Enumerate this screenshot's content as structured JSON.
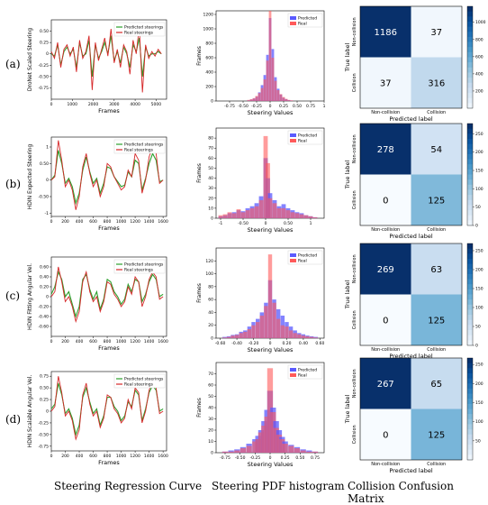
{
  "figure": {
    "row_labels": [
      "(a)",
      "(b)",
      "(c)",
      "(d)"
    ],
    "column_captions": [
      "Steering Regression Curve",
      "Steering PDF histogram",
      "Collision Confusion Matrix"
    ]
  },
  "colors": {
    "predicted_curve": "#2ca02c",
    "real_curve": "#d62728",
    "predicted_hist": "#5a5aff",
    "real_hist": "#ff5a5a",
    "cm_low": "#f7fbff",
    "cm_high": "#08306b"
  },
  "chart_data": [
    {
      "type": "line",
      "row": "(a)",
      "ylabel": "DroNet Scaled Steering",
      "xlabel": "Frames",
      "xlim": [
        0,
        5500
      ],
      "ylim": [
        -1.0,
        0.75
      ],
      "xticks": [
        0,
        1000,
        2000,
        3000,
        4000,
        5000
      ],
      "yticks": [
        -0.75,
        -0.5,
        -0.25,
        0.0,
        0.25,
        0.5
      ],
      "legend": "top-right",
      "series": [
        {
          "name": "Predicted steerings",
          "color": "#2ca02c"
        },
        {
          "name": "Real steerings",
          "color": "#d62728"
        }
      ],
      "x": [
        0,
        150,
        300,
        450,
        600,
        750,
        900,
        1050,
        1200,
        1350,
        1500,
        1650,
        1800,
        1950,
        2100,
        2250,
        2400,
        2550,
        2700,
        2850,
        3000,
        3150,
        3300,
        3450,
        3600,
        3750,
        3900,
        4050,
        4200,
        4350,
        4500,
        4650,
        4800,
        4950,
        5100,
        5250
      ],
      "values_real": [
        0.05,
        -0.1,
        0.25,
        -0.3,
        0.1,
        0.2,
        -0.05,
        0.15,
        -0.4,
        0.3,
        -0.1,
        0.05,
        0.4,
        -0.8,
        0.25,
        -0.15,
        0.1,
        0.35,
        -0.05,
        0.55,
        -0.2,
        0.1,
        -0.3,
        0.2,
        0.05,
        -0.45,
        0.3,
        0.0,
        0.6,
        -0.85,
        0.2,
        -0.1,
        0.05,
        -0.05,
        0.1,
        0.0
      ],
      "values_predicted": [
        0.0,
        -0.05,
        0.2,
        -0.25,
        0.05,
        0.15,
        0.0,
        0.1,
        -0.3,
        0.25,
        -0.05,
        0.0,
        0.3,
        -0.5,
        0.2,
        -0.1,
        0.05,
        0.25,
        0.0,
        0.4,
        -0.15,
        0.05,
        -0.2,
        0.15,
        0.0,
        -0.3,
        0.2,
        0.05,
        0.35,
        -0.5,
        0.15,
        -0.05,
        0.0,
        0.0,
        0.05,
        0.0
      ]
    },
    {
      "type": "bar",
      "row": "(a)",
      "ylabel": "Frames",
      "xlabel": "Steering Values",
      "xlim": [
        -1.0,
        1.0
      ],
      "ylim": [
        0,
        1250
      ],
      "xticks": [
        -0.75,
        -0.5,
        -0.25,
        0.0,
        0.25,
        0.5,
        0.75,
        1.0
      ],
      "yticks": [
        0,
        200,
        400,
        600,
        800,
        1000,
        1200
      ],
      "legend": "top-right",
      "series": [
        {
          "name": "Predicted",
          "color": "#5a5aff"
        },
        {
          "name": "Real",
          "color": "#ff5a5a"
        }
      ],
      "bins": [
        -0.4,
        -0.35,
        -0.3,
        -0.25,
        -0.2,
        -0.15,
        -0.1,
        -0.05,
        0.0,
        0.05,
        0.1,
        0.15,
        0.2,
        0.25,
        0.3,
        0.35,
        0.4
      ],
      "predicted": [
        10,
        20,
        35,
        60,
        120,
        220,
        360,
        640,
        1150,
        720,
        330,
        170,
        90,
        45,
        25,
        12,
        6
      ],
      "real": [
        15,
        25,
        40,
        70,
        110,
        180,
        300,
        560,
        1250,
        600,
        280,
        150,
        95,
        55,
        30,
        15,
        10
      ]
    },
    {
      "type": "heatmap",
      "row": "(a)",
      "ylabel": "True label",
      "xlabel": "Predicted label",
      "categories": [
        "Non-collision",
        "Collision"
      ],
      "matrix": [
        [
          1186,
          37
        ],
        [
          37,
          316
        ]
      ],
      "colorbar_ticks": [
        200,
        400,
        600,
        800,
        1000
      ],
      "vmax": 1186
    },
    {
      "type": "line",
      "row": "(b)",
      "ylabel": "HDIN Expected Steering",
      "xlabel": "Frames",
      "xlim": [
        0,
        1650
      ],
      "ylim": [
        -1.1,
        1.3
      ],
      "xticks": [
        0,
        200,
        400,
        600,
        800,
        1000,
        1200,
        1400,
        1600
      ],
      "yticks": [
        -1.0,
        -0.5,
        0.0,
        0.5,
        1.0
      ],
      "legend": "top-right",
      "series": [
        {
          "name": "Predicted steerings",
          "color": "#2ca02c"
        },
        {
          "name": "Real steerings",
          "color": "#d62728"
        }
      ],
      "x": [
        0,
        50,
        100,
        150,
        200,
        250,
        300,
        350,
        400,
        450,
        500,
        550,
        600,
        650,
        700,
        750,
        800,
        850,
        900,
        950,
        1000,
        1050,
        1100,
        1150,
        1200,
        1250,
        1300,
        1350,
        1400,
        1450,
        1500,
        1550,
        1600
      ],
      "values_real": [
        0.0,
        0.1,
        1.2,
        0.6,
        -0.2,
        0.0,
        -0.3,
        -0.9,
        -0.5,
        0.4,
        0.8,
        0.2,
        -0.2,
        0.0,
        -0.5,
        -0.2,
        0.5,
        0.4,
        0.1,
        -0.1,
        -0.3,
        -0.2,
        0.3,
        0.1,
        0.8,
        0.6,
        -0.4,
        0.0,
        0.7,
        1.0,
        0.8,
        -0.1,
        0.0
      ],
      "values_predicted": [
        0.0,
        0.15,
        0.9,
        0.5,
        -0.1,
        0.05,
        -0.2,
        -0.7,
        -0.4,
        0.3,
        0.7,
        0.25,
        -0.1,
        0.05,
        -0.4,
        -0.1,
        0.4,
        0.35,
        0.1,
        -0.05,
        -0.2,
        -0.15,
        0.25,
        0.1,
        0.6,
        0.5,
        -0.3,
        0.05,
        0.5,
        0.8,
        0.6,
        -0.05,
        0.0
      ]
    },
    {
      "type": "bar",
      "row": "(b)",
      "ylabel": "Frames",
      "xlabel": "Steering Values",
      "xlim": [
        -1.1,
        1.3
      ],
      "ylim": [
        0,
        90
      ],
      "xticks": [
        -1.0,
        -0.5,
        0.0,
        0.5,
        1.0
      ],
      "yticks": [
        0,
        10,
        20,
        30,
        40,
        50,
        60,
        70,
        80
      ],
      "legend": "top-right",
      "series": [
        {
          "name": "Predicted",
          "color": "#5a5aff"
        },
        {
          "name": "Real",
          "color": "#ff5a5a"
        }
      ],
      "bins": [
        -1.0,
        -0.9,
        -0.8,
        -0.7,
        -0.6,
        -0.5,
        -0.4,
        -0.3,
        -0.2,
        -0.1,
        0.0,
        0.05,
        0.1,
        0.2,
        0.3,
        0.4,
        0.5,
        0.6,
        0.7,
        0.8,
        0.9,
        1.0,
        1.1
      ],
      "predicted": [
        2,
        3,
        5,
        6,
        8,
        7,
        10,
        12,
        15,
        22,
        60,
        40,
        25,
        18,
        12,
        14,
        10,
        8,
        6,
        5,
        3,
        2,
        1
      ],
      "real": [
        3,
        4,
        6,
        5,
        9,
        6,
        8,
        10,
        12,
        18,
        82,
        55,
        20,
        15,
        10,
        10,
        8,
        6,
        5,
        4,
        3,
        2,
        1
      ]
    },
    {
      "type": "heatmap",
      "row": "(b)",
      "ylabel": "True label",
      "xlabel": "Predicted label",
      "categories": [
        "Non-collision",
        "Collision"
      ],
      "matrix": [
        [
          278,
          54
        ],
        [
          0,
          125
        ]
      ],
      "colorbar_ticks": [
        0,
        50,
        100,
        150,
        200,
        250
      ],
      "vmax": 278
    },
    {
      "type": "line",
      "row": "(c)",
      "ylabel": "HDIN Fitting Angular Vel.",
      "xlabel": "Frames",
      "xlim": [
        0,
        1650
      ],
      "ylim": [
        -0.8,
        0.8
      ],
      "xticks": [
        0,
        200,
        400,
        600,
        800,
        1000,
        1200,
        1400,
        1600
      ],
      "yticks": [
        -0.6,
        -0.4,
        -0.2,
        0.0,
        0.2,
        0.4,
        0.6
      ],
      "legend": "top-right",
      "series": [
        {
          "name": "Predicted steerings",
          "color": "#2ca02c"
        },
        {
          "name": "Real steerings",
          "color": "#d62728"
        }
      ],
      "x": [
        0,
        50,
        100,
        150,
        200,
        250,
        300,
        350,
        400,
        450,
        500,
        550,
        600,
        650,
        700,
        750,
        800,
        850,
        900,
        950,
        1000,
        1050,
        1100,
        1150,
        1200,
        1250,
        1300,
        1350,
        1400,
        1450,
        1500,
        1550,
        1600
      ],
      "values_real": [
        0.0,
        0.1,
        0.6,
        0.3,
        -0.1,
        0.0,
        -0.2,
        -0.5,
        -0.3,
        0.3,
        0.5,
        0.1,
        -0.1,
        0.0,
        -0.3,
        -0.1,
        0.3,
        0.25,
        0.05,
        -0.05,
        -0.2,
        -0.1,
        0.2,
        0.05,
        0.4,
        0.3,
        -0.2,
        0.0,
        0.35,
        0.5,
        0.4,
        -0.05,
        0.0
      ],
      "values_predicted": [
        0.05,
        0.2,
        0.5,
        0.35,
        0.0,
        0.1,
        -0.15,
        -0.4,
        -0.2,
        0.35,
        0.45,
        0.15,
        -0.05,
        0.1,
        -0.25,
        -0.05,
        0.35,
        0.3,
        0.1,
        0.0,
        -0.15,
        -0.05,
        0.25,
        0.1,
        0.35,
        0.3,
        -0.1,
        0.05,
        0.3,
        0.45,
        0.35,
        0.0,
        0.05
      ]
    },
    {
      "type": "bar",
      "row": "(c)",
      "ylabel": "Frames",
      "xlabel": "Steering Values",
      "xlim": [
        -0.65,
        0.65
      ],
      "ylim": [
        0,
        140
      ],
      "xticks": [
        -0.6,
        -0.4,
        -0.2,
        0.0,
        0.2,
        0.4,
        0.6
      ],
      "yticks": [
        0,
        20,
        40,
        60,
        80,
        100,
        120
      ],
      "legend": "top-right",
      "series": [
        {
          "name": "Predicted",
          "color": "#5a5aff"
        },
        {
          "name": "Real",
          "color": "#ff5a5a"
        }
      ],
      "bins": [
        -0.55,
        -0.5,
        -0.45,
        -0.4,
        -0.35,
        -0.3,
        -0.25,
        -0.2,
        -0.15,
        -0.1,
        -0.05,
        0.0,
        0.05,
        0.1,
        0.15,
        0.2,
        0.25,
        0.3,
        0.35,
        0.4,
        0.45,
        0.5,
        0.55
      ],
      "predicted": [
        2,
        3,
        5,
        6,
        10,
        12,
        18,
        25,
        30,
        40,
        55,
        90,
        60,
        45,
        35,
        25,
        18,
        12,
        8,
        6,
        4,
        3,
        2
      ],
      "real": [
        1,
        2,
        4,
        5,
        8,
        10,
        14,
        20,
        25,
        35,
        50,
        130,
        55,
        30,
        20,
        18,
        12,
        8,
        6,
        4,
        3,
        2,
        1
      ]
    },
    {
      "type": "heatmap",
      "row": "(c)",
      "ylabel": "True label",
      "xlabel": "Predicted label",
      "categories": [
        "Non-collision",
        "Collision"
      ],
      "matrix": [
        [
          269,
          63
        ],
        [
          0,
          125
        ]
      ],
      "colorbar_ticks": [
        0,
        50,
        100,
        150,
        200,
        250
      ],
      "vmax": 269
    },
    {
      "type": "line",
      "row": "(d)",
      "ylabel": "HDIN Scalable Angular Vel.",
      "xlabel": "Frames",
      "xlim": [
        0,
        1650
      ],
      "ylim": [
        -0.85,
        0.85
      ],
      "xticks": [
        0,
        200,
        400,
        600,
        800,
        1000,
        1200,
        1400,
        1600
      ],
      "yticks": [
        -0.75,
        -0.5,
        -0.25,
        0.0,
        0.25,
        0.5,
        0.75
      ],
      "legend": "top-right",
      "series": [
        {
          "name": "Predicted steerings",
          "color": "#2ca02c"
        },
        {
          "name": "Real steerings",
          "color": "#d62728"
        }
      ],
      "x": [
        0,
        50,
        100,
        150,
        200,
        250,
        300,
        350,
        400,
        450,
        500,
        550,
        600,
        650,
        700,
        750,
        800,
        850,
        900,
        950,
        1000,
        1050,
        1100,
        1150,
        1200,
        1250,
        1300,
        1350,
        1400,
        1450,
        1500,
        1550,
        1600
      ],
      "values_real": [
        0.0,
        0.1,
        0.75,
        0.4,
        -0.1,
        0.0,
        -0.2,
        -0.6,
        -0.4,
        0.35,
        0.6,
        0.15,
        -0.1,
        0.0,
        -0.35,
        -0.15,
        0.35,
        0.3,
        0.05,
        -0.05,
        -0.25,
        -0.15,
        0.25,
        0.05,
        0.5,
        0.4,
        -0.25,
        0.0,
        0.45,
        0.65,
        0.5,
        -0.05,
        0.0
      ],
      "values_predicted": [
        0.05,
        0.15,
        0.6,
        0.35,
        -0.05,
        0.05,
        -0.15,
        -0.5,
        -0.3,
        0.3,
        0.5,
        0.2,
        -0.05,
        0.05,
        -0.3,
        -0.1,
        0.3,
        0.3,
        0.1,
        0.0,
        -0.2,
        -0.1,
        0.2,
        0.1,
        0.45,
        0.35,
        -0.2,
        0.05,
        0.4,
        0.55,
        0.45,
        0.0,
        0.05
      ]
    },
    {
      "type": "bar",
      "row": "(d)",
      "ylabel": "Frames",
      "xlabel": "Steering Values",
      "xlim": [
        -0.9,
        0.9
      ],
      "ylim": [
        0,
        80
      ],
      "xticks": [
        -0.75,
        -0.5,
        -0.25,
        0.0,
        0.25,
        0.5,
        0.75
      ],
      "yticks": [
        0,
        10,
        20,
        30,
        40,
        50,
        60,
        70
      ],
      "legend": "top-right",
      "series": [
        {
          "name": "Predicted",
          "color": "#5a5aff"
        },
        {
          "name": "Real",
          "color": "#ff5a5a"
        }
      ],
      "bins": [
        -0.75,
        -0.65,
        -0.55,
        -0.45,
        -0.35,
        -0.25,
        -0.2,
        -0.15,
        -0.1,
        -0.05,
        0.0,
        0.05,
        0.1,
        0.15,
        0.2,
        0.25,
        0.35,
        0.45,
        0.55,
        0.65,
        0.75
      ],
      "predicted": [
        1,
        2,
        3,
        5,
        8,
        12,
        15,
        20,
        28,
        38,
        55,
        40,
        28,
        20,
        14,
        10,
        7,
        5,
        3,
        2,
        1
      ],
      "real": [
        1,
        1,
        2,
        4,
        6,
        10,
        12,
        18,
        24,
        32,
        75,
        36,
        22,
        16,
        12,
        8,
        6,
        4,
        2,
        1,
        1
      ]
    },
    {
      "type": "heatmap",
      "row": "(d)",
      "ylabel": "True label",
      "xlabel": "Predicted label",
      "categories": [
        "Non-collision",
        "Collision"
      ],
      "matrix": [
        [
          267,
          65
        ],
        [
          0,
          125
        ]
      ],
      "colorbar_ticks": [
        50,
        100,
        150,
        200,
        250
      ],
      "vmax": 267
    }
  ]
}
